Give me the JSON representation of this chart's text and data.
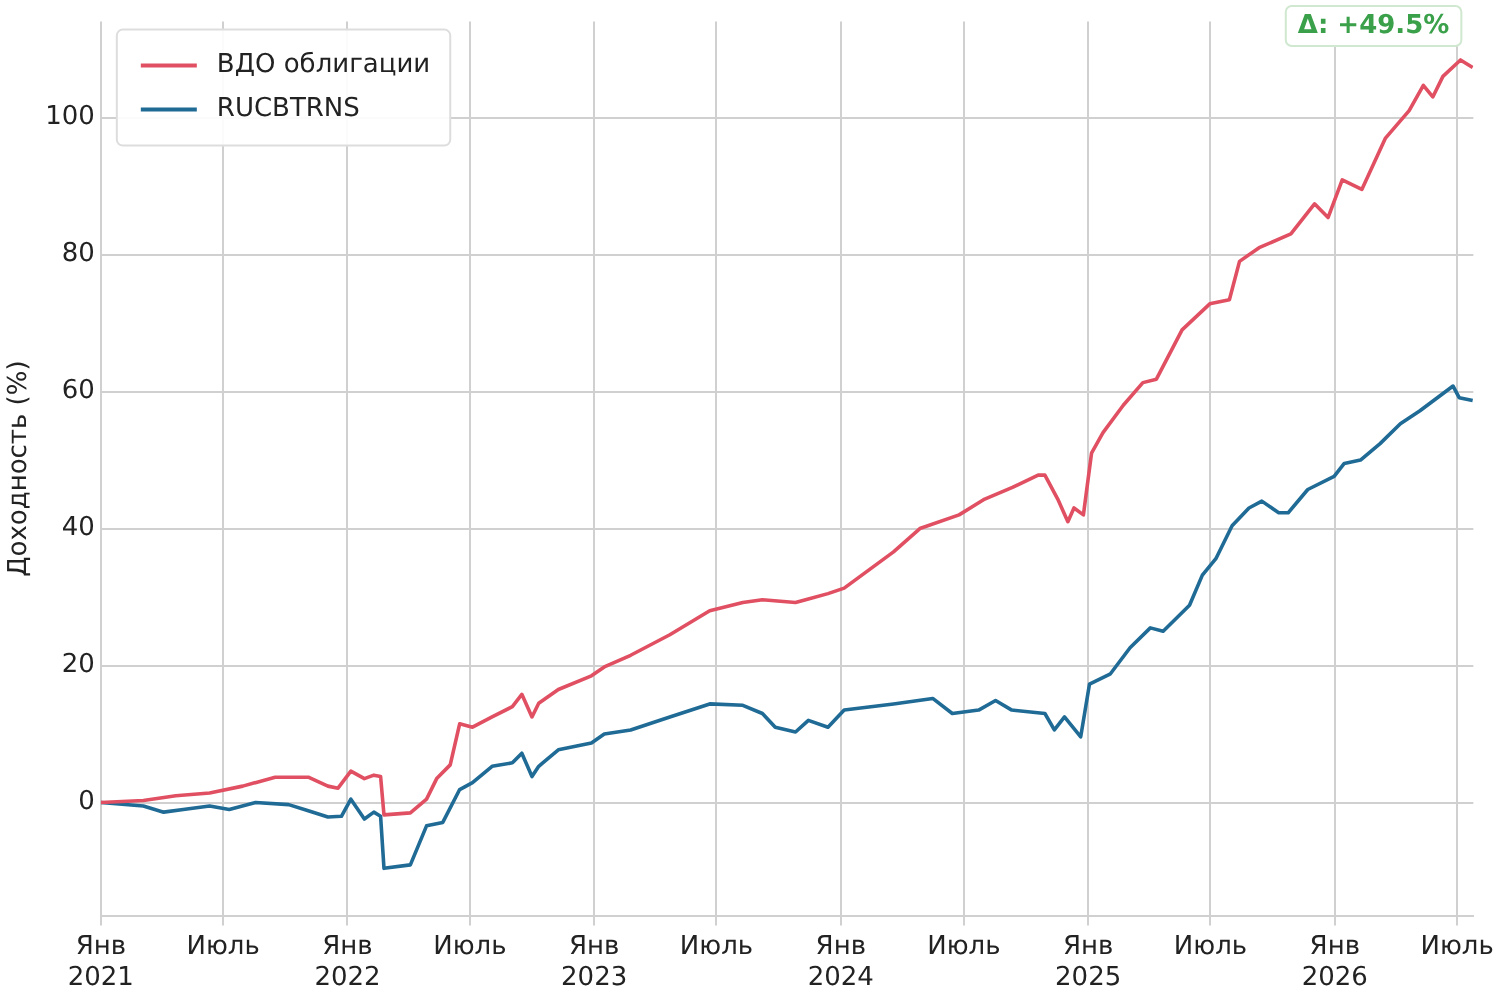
{
  "chart_data": {
    "type": "line",
    "ylabel": "Доходность (%)",
    "annotations": [
      "Δ: +49.5%"
    ],
    "xlim": [
      "2021-01-01",
      "2026-07-25"
    ],
    "ylim": [
      -16.5,
      114
    ],
    "xticks": [
      {
        "value": "2021-01-01",
        "label": "Янв 2021"
      },
      {
        "value": "2021-07-01",
        "label": "Июль"
      },
      {
        "value": "2022-01-01",
        "label": "Янв 2022"
      },
      {
        "value": "2022-07-01",
        "label": "Июль"
      },
      {
        "value": "2023-01-01",
        "label": "Янв 2023"
      },
      {
        "value": "2023-07-01",
        "label": "Июль"
      },
      {
        "value": "2024-01-01",
        "label": "Янв 2024"
      },
      {
        "value": "2024-07-01",
        "label": "Июль"
      },
      {
        "value": "2025-01-01",
        "label": "Янв 2025"
      },
      {
        "value": "2025-07-01",
        "label": "Июль"
      },
      {
        "value": "2026-01-01",
        "label": "Янв 2026"
      },
      {
        "value": "2026-07-01",
        "label": "Июль"
      }
    ],
    "yticks": [
      0,
      20,
      40,
      60,
      80,
      100
    ],
    "grid": true,
    "legend": "top left",
    "marker": "none",
    "line_style": "solid",
    "series": [
      {
        "name": "ВДО облигации",
        "color": "#e05062",
        "x": [
          "2021-01-01",
          "2021-03-05",
          "2021-04-22",
          "2021-06-11",
          "2021-07-30",
          "2021-09-16",
          "2021-11-04",
          "2021-12-03",
          "2021-12-18",
          "2022-01-06",
          "2022-01-26",
          "2022-02-09",
          "2022-02-19",
          "2022-02-24",
          "2022-04-04",
          "2022-04-28",
          "2022-05-13",
          "2022-06-02",
          "2022-06-16",
          "2022-07-05",
          "2022-08-03",
          "2022-09-02",
          "2022-09-16",
          "2022-10-01",
          "2022-10-11",
          "2022-11-09",
          "2022-12-28",
          "2023-01-16",
          "2023-02-24",
          "2023-04-23",
          "2023-06-21",
          "2023-08-09",
          "2023-09-07",
          "2023-10-26",
          "2023-11-14",
          "2023-12-13",
          "2024-01-06",
          "2024-03-19",
          "2024-04-27",
          "2024-06-24",
          "2024-08-01",
          "2024-09-11",
          "2024-10-19",
          "2024-10-29",
          "2024-11-17",
          "2024-12-02",
          "2024-12-11",
          "2024-12-25",
          "2025-01-06",
          "2025-01-23",
          "2025-02-22",
          "2025-03-23",
          "2025-04-12",
          "2025-05-20",
          "2025-06-30",
          "2025-07-29",
          "2025-08-13",
          "2025-09-11",
          "2025-10-28",
          "2025-12-02",
          "2025-12-22",
          "2026-01-12",
          "2026-02-10",
          "2026-03-17",
          "2026-04-21",
          "2026-05-12",
          "2026-05-26",
          "2026-06-10",
          "2026-07-06",
          "2026-07-24"
        ],
        "values": [
          0,
          0.3,
          1,
          1.4,
          2.4,
          3.7,
          3.7,
          2.4,
          2.1,
          4.6,
          3.5,
          4,
          3.8,
          -1.8,
          -1.5,
          0.5,
          3.5,
          5.5,
          11.5,
          11,
          12.5,
          14,
          15.8,
          12.5,
          14.5,
          16.5,
          18.5,
          19.8,
          21.5,
          24.5,
          28,
          29.2,
          29.6,
          29.2,
          29.7,
          30.5,
          31.3,
          36.6,
          40,
          42,
          44.3,
          46,
          47.8,
          47.8,
          44.3,
          41,
          43,
          42,
          51,
          54,
          58,
          61.3,
          61.8,
          69,
          72.8,
          73.4,
          79,
          81,
          83,
          87.4,
          85.4,
          90.9,
          89.5,
          97,
          101,
          104.7,
          103,
          106,
          108.4,
          107.3
        ]
      },
      {
        "name": "RUCBTRNS",
        "color": "#1f6b96",
        "x": [
          "2021-01-01",
          "2021-03-05",
          "2021-04-04",
          "2021-05-03",
          "2021-06-11",
          "2021-07-10",
          "2021-08-18",
          "2021-10-06",
          "2021-11-04",
          "2021-12-03",
          "2021-12-23",
          "2022-01-06",
          "2022-01-26",
          "2022-02-09",
          "2022-02-19",
          "2022-02-24",
          "2022-04-04",
          "2022-04-28",
          "2022-05-22",
          "2022-06-16",
          "2022-07-05",
          "2022-08-03",
          "2022-09-02",
          "2022-09-16",
          "2022-10-01",
          "2022-10-11",
          "2022-11-09",
          "2022-12-28",
          "2023-01-16",
          "2023-02-24",
          "2023-04-23",
          "2023-06-21",
          "2023-08-09",
          "2023-09-07",
          "2023-09-26",
          "2023-10-26",
          "2023-11-14",
          "2023-12-13",
          "2024-01-06",
          "2024-03-19",
          "2024-05-16",
          "2024-06-14",
          "2024-07-23",
          "2024-08-17",
          "2024-09-10",
          "2024-10-29",
          "2024-11-12",
          "2024-11-27",
          "2024-12-21",
          "2025-01-03",
          "2025-02-03",
          "2025-03-04",
          "2025-04-03",
          "2025-04-22",
          "2025-05-31",
          "2025-06-19",
          "2025-07-09",
          "2025-08-02",
          "2025-08-27",
          "2025-09-15",
          "2025-10-10",
          "2025-10-24",
          "2025-11-22",
          "2025-12-31",
          "2026-01-15",
          "2026-02-08",
          "2026-03-09",
          "2026-04-08",
          "2026-05-07",
          "2026-06-25",
          "2026-07-04",
          "2026-07-24"
        ],
        "values": [
          0,
          -0.5,
          -1.4,
          -1,
          -0.5,
          -1,
          0,
          -0.3,
          -1.2,
          -2.1,
          -2,
          0.5,
          -2.4,
          -1.4,
          -2,
          -9.6,
          -9.1,
          -3.4,
          -2.9,
          1.9,
          2.9,
          5.3,
          5.8,
          7.2,
          3.8,
          5.3,
          7.7,
          8.7,
          10,
          10.6,
          12.5,
          14.4,
          14.2,
          13,
          11,
          10.3,
          12,
          11,
          13.5,
          14.4,
          15.2,
          13,
          13.5,
          14.9,
          13.5,
          13,
          10.6,
          12.5,
          9.6,
          17.3,
          18.8,
          22.6,
          25.5,
          25,
          28.8,
          33.2,
          35.6,
          40.4,
          43,
          44,
          42.3,
          42.3,
          45.7,
          47.6,
          49.5,
          50,
          52.4,
          55.3,
          57.2,
          60.8,
          59.1,
          58.7
        ]
      }
    ]
  }
}
